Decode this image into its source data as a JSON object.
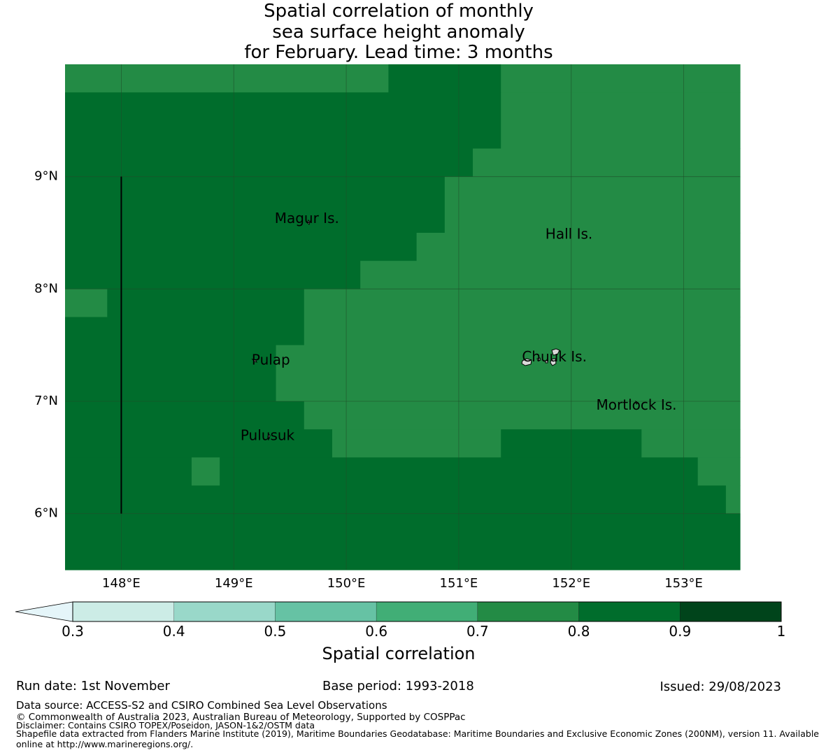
{
  "title_lines": [
    "Spatial correlation of monthly",
    "sea surface height anomaly",
    "for February. Lead time: 3 months"
  ],
  "map": {
    "lon_range": [
      147.5,
      153.5
    ],
    "lat_range": [
      5.5,
      10.0
    ],
    "lon_ticks": [
      {
        "value": 148,
        "label": "148°E"
      },
      {
        "value": 149,
        "label": "149°E"
      },
      {
        "value": 150,
        "label": "150°E"
      },
      {
        "value": 151,
        "label": "151°E"
      },
      {
        "value": 152,
        "label": "152°E"
      },
      {
        "value": 153,
        "label": "153°E"
      }
    ],
    "lat_ticks": [
      {
        "value": 9,
        "label": "9°N"
      },
      {
        "value": 8,
        "label": "8°N"
      },
      {
        "value": 7,
        "label": "7°N"
      },
      {
        "value": 6,
        "label": "6°N"
      }
    ],
    "colors": {
      "band_07_08": "#238b45",
      "band_08_09": "#006d2c",
      "grid_line": "#1f4f2a",
      "boundary_line": "#000000"
    },
    "cells": [
      {
        "lon": [
          147.5,
          150.375
        ],
        "lat": [
          9.75,
          10.0
        ],
        "band": "band_07_08"
      },
      {
        "lon": [
          150.375,
          151.375
        ],
        "lat": [
          9.75,
          10.0
        ],
        "band": "band_08_09"
      },
      {
        "lon": [
          151.375,
          153.5
        ],
        "lat": [
          9.75,
          10.0
        ],
        "band": "band_07_08"
      },
      {
        "lon": [
          147.5,
          151.375
        ],
        "lat": [
          9.25,
          9.75
        ],
        "band": "band_08_09"
      },
      {
        "lon": [
          151.375,
          153.5
        ],
        "lat": [
          9.25,
          9.75
        ],
        "band": "band_07_08"
      },
      {
        "lon": [
          147.5,
          151.125
        ],
        "lat": [
          9.0,
          9.25
        ],
        "band": "band_08_09"
      },
      {
        "lon": [
          151.125,
          153.5
        ],
        "lat": [
          9.0,
          9.25
        ],
        "band": "band_07_08"
      },
      {
        "lon": [
          147.5,
          150.875
        ],
        "lat": [
          8.5,
          9.0
        ],
        "band": "band_08_09"
      },
      {
        "lon": [
          150.875,
          153.5
        ],
        "lat": [
          8.5,
          9.0
        ],
        "band": "band_07_08"
      },
      {
        "lon": [
          147.5,
          150.625
        ],
        "lat": [
          8.25,
          8.5
        ],
        "band": "band_08_09"
      },
      {
        "lon": [
          150.625,
          153.5
        ],
        "lat": [
          8.25,
          8.5
        ],
        "band": "band_07_08"
      },
      {
        "lon": [
          147.5,
          150.125
        ],
        "lat": [
          8.0,
          8.25
        ],
        "band": "band_08_09"
      },
      {
        "lon": [
          150.125,
          153.5
        ],
        "lat": [
          8.0,
          8.25
        ],
        "band": "band_07_08"
      },
      {
        "lon": [
          147.5,
          147.875
        ],
        "lat": [
          7.75,
          8.0
        ],
        "band": "band_07_08"
      },
      {
        "lon": [
          147.875,
          149.625
        ],
        "lat": [
          7.75,
          8.0
        ],
        "band": "band_08_09"
      },
      {
        "lon": [
          149.625,
          153.5
        ],
        "lat": [
          7.75,
          8.0
        ],
        "band": "band_07_08"
      },
      {
        "lon": [
          147.5,
          149.625
        ],
        "lat": [
          7.5,
          7.75
        ],
        "band": "band_08_09"
      },
      {
        "lon": [
          149.625,
          153.5
        ],
        "lat": [
          7.5,
          7.75
        ],
        "band": "band_07_08"
      },
      {
        "lon": [
          147.5,
          149.375
        ],
        "lat": [
          7.0,
          7.5
        ],
        "band": "band_08_09"
      },
      {
        "lon": [
          149.375,
          153.5
        ],
        "lat": [
          7.0,
          7.5
        ],
        "band": "band_07_08"
      },
      {
        "lon": [
          147.5,
          149.625
        ],
        "lat": [
          6.75,
          7.0
        ],
        "band": "band_08_09"
      },
      {
        "lon": [
          149.625,
          153.5
        ],
        "lat": [
          6.75,
          7.0
        ],
        "band": "band_07_08"
      },
      {
        "lon": [
          147.5,
          149.875
        ],
        "lat": [
          6.5,
          6.75
        ],
        "band": "band_08_09"
      },
      {
        "lon": [
          149.875,
          151.375
        ],
        "lat": [
          6.5,
          6.75
        ],
        "band": "band_07_08"
      },
      {
        "lon": [
          151.375,
          152.625
        ],
        "lat": [
          6.5,
          6.75
        ],
        "band": "band_08_09"
      },
      {
        "lon": [
          152.625,
          153.5
        ],
        "lat": [
          6.5,
          6.75
        ],
        "band": "band_07_08"
      },
      {
        "lon": [
          147.5,
          148.625
        ],
        "lat": [
          6.25,
          6.5
        ],
        "band": "band_08_09"
      },
      {
        "lon": [
          148.625,
          148.875
        ],
        "lat": [
          6.25,
          6.5
        ],
        "band": "band_07_08"
      },
      {
        "lon": [
          148.875,
          153.125
        ],
        "lat": [
          6.25,
          6.5
        ],
        "band": "band_08_09"
      },
      {
        "lon": [
          153.125,
          153.5
        ],
        "lat": [
          6.25,
          6.5
        ],
        "band": "band_07_08"
      },
      {
        "lon": [
          147.5,
          153.375
        ],
        "lat": [
          6.0,
          6.25
        ],
        "band": "band_08_09"
      },
      {
        "lon": [
          153.375,
          153.5
        ],
        "lat": [
          6.0,
          6.25
        ],
        "band": "band_07_08"
      },
      {
        "lon": [
          147.5,
          153.5
        ],
        "lat": [
          5.5,
          6.0
        ],
        "band": "band_08_09"
      }
    ],
    "boundary_segment": {
      "lon": 148.0,
      "lat": [
        6.0,
        9.0
      ]
    },
    "places": [
      {
        "name": "Magur Is.",
        "lon": 149.65,
        "lat": 8.62
      },
      {
        "name": "Hall Is.",
        "lon": 151.98,
        "lat": 8.48
      },
      {
        "name": "Pulap",
        "lon": 149.33,
        "lat": 7.36
      },
      {
        "name": "Chuuk Is.",
        "lon": 151.85,
        "lat": 7.39
      },
      {
        "name": "Mortlock Is.",
        "lon": 152.58,
        "lat": 6.96
      },
      {
        "name": "Pulusuk",
        "lon": 149.3,
        "lat": 6.69
      }
    ]
  },
  "colorbar": {
    "title": "Spatial correlation",
    "extend_color": "#e5f5f9",
    "bins": [
      {
        "from": 0.3,
        "to": 0.4,
        "color": "#ccece6"
      },
      {
        "from": 0.4,
        "to": 0.5,
        "color": "#99d8c9"
      },
      {
        "from": 0.5,
        "to": 0.6,
        "color": "#66c2a4"
      },
      {
        "from": 0.6,
        "to": 0.7,
        "color": "#41ae76"
      },
      {
        "from": 0.7,
        "to": 0.8,
        "color": "#238b45"
      },
      {
        "from": 0.8,
        "to": 0.9,
        "color": "#006d2c"
      },
      {
        "from": 0.9,
        "to": 1.0,
        "color": "#00441b"
      }
    ],
    "tick_labels": [
      "0.3",
      "0.4",
      "0.5",
      "0.6",
      "0.7",
      "0.8",
      "0.9",
      "1"
    ]
  },
  "footer": {
    "run_date": "Run date: 1st November",
    "base_period": "Base period: 1993-2018",
    "issued": "Issued: 29/08/2023",
    "data_source": "Data source: ACCESS-S2 and CSIRO Combined Sea Level Observations",
    "copyright": "© Commonwealth of Australia 2023, Australian Bureau of Meteorology, Supported by COSPPac",
    "disclaimer": "Disclaimer: Contains CSIRO TOPEX/Poseidon, JASON-1&2/OSTM data",
    "shapefile_line1": "Shapefile data extracted from Flanders Marine Institute (2019), Maritime Boundaries Geodatabase: Maritime Boundaries and Exclusive Economic Zones (200NM), version 11. Available",
    "shapefile_line2": "online at http://www.marineregions.org/."
  }
}
